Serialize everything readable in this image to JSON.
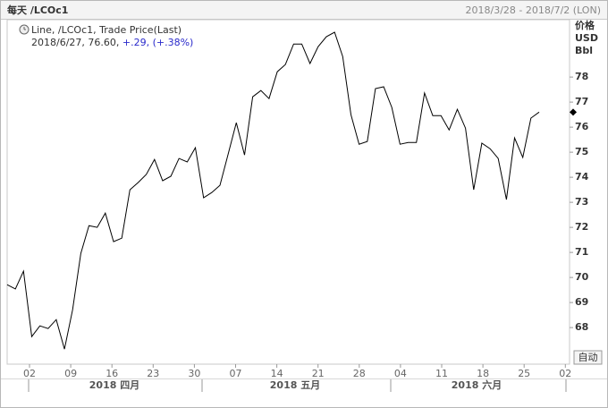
{
  "chart_data": {
    "type": "line",
    "title": "每天 /LCOc1",
    "date_range": "2018/3/28 - 2018/7/2 (LON)",
    "y_axis_label": [
      "价格",
      "USD",
      "Bbl"
    ],
    "legend": {
      "series": "Line, /LCOc1, Trade Price(Last)",
      "last": "2018/6/27, 76.60,",
      "change": "+.29, (+.38%)"
    },
    "color": "#000000",
    "values": [
      69.71,
      69.54,
      70.25,
      67.64,
      68.07,
      67.96,
      68.32,
      67.14,
      68.71,
      70.96,
      72.07,
      72.0,
      72.57,
      71.43,
      71.57,
      73.5,
      73.79,
      74.11,
      74.71,
      73.86,
      74.04,
      74.75,
      74.61,
      75.18,
      73.18,
      73.39,
      73.68,
      74.93,
      76.18,
      74.89,
      77.21,
      77.46,
      77.14,
      78.21,
      78.5,
      79.32,
      79.32,
      78.54,
      79.21,
      79.61,
      79.79,
      78.82,
      76.5,
      75.32,
      75.43,
      77.54,
      77.61,
      76.79,
      75.32,
      75.39,
      75.39,
      77.36,
      76.46,
      76.46,
      75.89,
      76.71,
      75.96,
      73.5,
      75.36,
      75.14,
      74.75,
      73.11,
      75.57,
      74.79,
      76.36,
      76.6
    ],
    "x_tick_labels": [
      "02",
      "09",
      "16",
      "23",
      "30",
      "07",
      "14",
      "21",
      "28",
      "04",
      "11",
      "18",
      "25",
      "02"
    ],
    "month_labels": [
      "2018 四月",
      "2018 五月",
      "2018 六月"
    ],
    "ylim": [
      66.54,
      80.29
    ],
    "yticks": [
      68,
      69,
      70,
      71,
      72,
      73,
      74,
      75,
      76,
      77,
      78
    ],
    "auto_button": "自动"
  }
}
